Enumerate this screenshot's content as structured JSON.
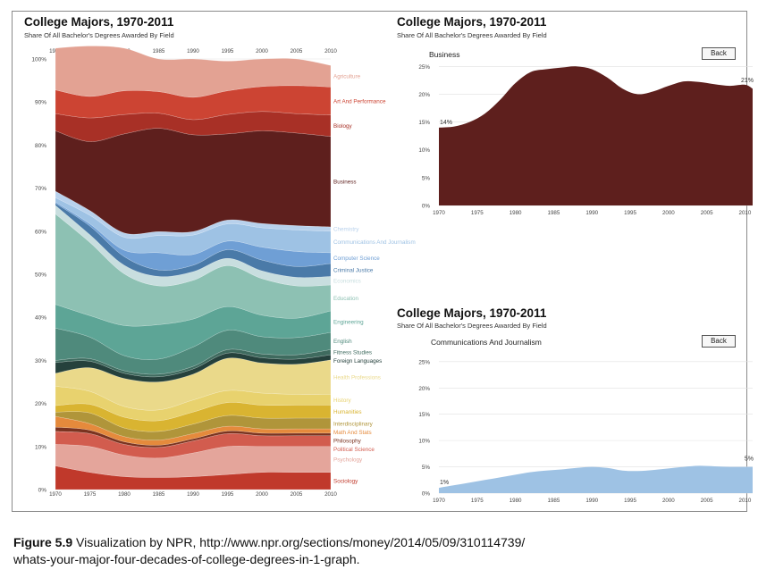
{
  "caption": {
    "figure_label": "Figure 5.9",
    "text_line1": "Visualization by NPR, http://www.npr.org/sections/money/2014/05/09/310114739/",
    "text_line2": "whats-your-major-four-decades-of-college-degrees-in-1-graph."
  },
  "main_panel": {
    "title": "College Majors, 1970-2011",
    "subtitle": "Share Of All Bachelor's Degrees Awarded By Field"
  },
  "business_panel": {
    "title": "College Majors, 1970-2011",
    "subtitle": "Share Of All Bachelor's Degrees Awarded By Field",
    "series_label": "Business",
    "back_label": "Back",
    "start_label": "14%",
    "end_label": "21%"
  },
  "comm_panel": {
    "title": "College Majors, 1970-2011",
    "subtitle": "Share Of All Bachelor's Degrees Awarded By Field",
    "series_label": "Communications And Journalism",
    "back_label": "Back",
    "start_label": "1%",
    "end_label": "5%"
  },
  "chart_data": [
    {
      "type": "area",
      "stacked": true,
      "title": "College Majors, 1970-2011",
      "subtitle": "Share Of All Bachelor's Degrees Awarded By Field",
      "x": [
        1970,
        1975,
        1980,
        1985,
        1990,
        1995,
        2000,
        2005,
        2010
      ],
      "x_ticks": [
        "1970",
        "1975",
        "1980",
        "1985",
        "1990",
        "1995",
        "2000",
        "2005",
        "2010"
      ],
      "y_ticks": [
        "0%",
        "10%",
        "20%",
        "30%",
        "40%",
        "50%",
        "60%",
        "70%",
        "80%",
        "90%",
        "100%"
      ],
      "ylim": [
        0,
        100
      ],
      "stack_order": "bottom-to-top",
      "series": [
        {
          "name": "Sociology",
          "color": "#c0392b",
          "values": [
            5.5,
            4.0,
            3.0,
            2.8,
            3.0,
            3.5,
            4.0,
            4.0,
            4.0
          ]
        },
        {
          "name": "Psychology",
          "color": "#e4a59b",
          "values": [
            5.0,
            6.0,
            5.0,
            4.5,
            5.5,
            6.5,
            6.0,
            6.0,
            6.0
          ]
        },
        {
          "name": "Political Science",
          "color": "#d25c4e",
          "values": [
            3.0,
            3.0,
            2.5,
            2.5,
            2.8,
            3.0,
            2.5,
            2.5,
            2.5
          ]
        },
        {
          "name": "Philosophy",
          "color": "#7a3320",
          "values": [
            1.0,
            0.8,
            0.6,
            0.5,
            0.5,
            0.6,
            0.6,
            0.6,
            0.6
          ]
        },
        {
          "name": "Math And Stats",
          "color": "#e58a3c",
          "values": [
            2.5,
            1.5,
            1.2,
            1.2,
            1.2,
            1.1,
            1.0,
            1.0,
            1.0
          ]
        },
        {
          "name": "Interdisciplinary",
          "color": "#b0953a",
          "values": [
            1.0,
            2.5,
            2.0,
            2.0,
            2.2,
            2.5,
            2.5,
            2.5,
            2.5
          ]
        },
        {
          "name": "Humanities",
          "color": "#d9b431",
          "values": [
            1.5,
            2.0,
            2.5,
            2.5,
            2.8,
            3.0,
            3.0,
            3.0,
            3.0
          ]
        },
        {
          "name": "History",
          "color": "#e8d26e",
          "values": [
            4.5,
            3.0,
            2.5,
            2.5,
            2.8,
            2.8,
            2.8,
            2.5,
            2.5
          ]
        },
        {
          "name": "Health Professions",
          "color": "#ead98a",
          "values": [
            3.0,
            5.5,
            6.5,
            6.5,
            6.0,
            7.5,
            7.0,
            7.0,
            8.0
          ]
        },
        {
          "name": "Foreign Languages",
          "color": "#25413c",
          "values": [
            2.5,
            1.5,
            1.2,
            1.2,
            1.2,
            1.2,
            1.2,
            1.2,
            1.2
          ]
        },
        {
          "name": "Fitness Studies",
          "color": "#3f6b5f",
          "values": [
            0.5,
            0.6,
            0.6,
            0.6,
            0.6,
            0.8,
            0.9,
            1.0,
            1.2
          ]
        },
        {
          "name": "English",
          "color": "#4f8a7c",
          "values": [
            7.5,
            5.0,
            3.5,
            3.5,
            4.5,
            4.5,
            4.0,
            4.0,
            4.0
          ]
        },
        {
          "name": "Engineering",
          "color": "#5da596",
          "values": [
            5.5,
            5.0,
            7.0,
            8.0,
            6.5,
            5.5,
            5.0,
            4.5,
            5.0
          ]
        },
        {
          "name": "Education",
          "color": "#8dc1b3",
          "values": [
            21.0,
            17.0,
            12.0,
            9.0,
            9.0,
            9.5,
            8.5,
            7.5,
            6.0
          ]
        },
        {
          "name": "Economics",
          "color": "#c8dedf",
          "values": [
            2.0,
            1.8,
            2.0,
            2.2,
            2.0,
            1.7,
            1.8,
            2.0,
            2.0
          ]
        },
        {
          "name": "Criminal Justice",
          "color": "#4a7aa8",
          "values": [
            0.5,
            2.0,
            2.0,
            1.5,
            1.5,
            2.0,
            2.5,
            2.5,
            3.0
          ]
        },
        {
          "name": "Computer Science",
          "color": "#6f9fd5",
          "values": [
            0.3,
            0.5,
            1.5,
            4.0,
            2.5,
            2.0,
            3.0,
            3.5,
            2.5
          ]
        },
        {
          "name": "Communications And Journalism",
          "color": "#9ec2e4",
          "values": [
            1.0,
            2.0,
            3.0,
            4.0,
            4.5,
            4.0,
            4.5,
            5.0,
            5.0
          ]
        },
        {
          "name": "Chemistry",
          "color": "#b8d1ec",
          "values": [
            1.5,
            1.1,
            1.0,
            0.9,
            0.8,
            0.9,
            1.0,
            1.0,
            1.0
          ]
        },
        {
          "name": "Business",
          "color": "#5e1f1d",
          "values": [
            14.0,
            16.0,
            23.0,
            24.0,
            22.5,
            20.0,
            21.5,
            21.5,
            21.0
          ]
        },
        {
          "name": "Biology",
          "color": "#a83026",
          "values": [
            4.0,
            5.5,
            4.5,
            3.5,
            3.5,
            4.5,
            4.5,
            4.5,
            5.0
          ]
        },
        {
          "name": "Art And Performance",
          "color": "#cc4433",
          "values": [
            5.5,
            5.0,
            5.5,
            5.0,
            5.2,
            5.5,
            5.8,
            6.5,
            6.5
          ]
        },
        {
          "name": "Agriculture",
          "color": "#e3a293",
          "values": [
            9.7,
            11.7,
            9.9,
            7.6,
            8.9,
            6.9,
            6.4,
            6.2,
            5.0
          ]
        }
      ]
    },
    {
      "type": "area",
      "title": "College Majors, 1970-2011",
      "subtitle": "Share Of All Bachelor's Degrees Awarded By Field",
      "x": [
        1970,
        1972,
        1974,
        1976,
        1978,
        1980,
        1982,
        1984,
        1986,
        1988,
        1990,
        1992,
        1994,
        1996,
        1998,
        2000,
        2002,
        2004,
        2006,
        2008,
        2010,
        2011
      ],
      "x_ticks": [
        "1970",
        "1975",
        "1980",
        "1985",
        "1990",
        "1995",
        "2000",
        "2005",
        "2010"
      ],
      "y_ticks": [
        "0%",
        "5%",
        "10%",
        "15%",
        "20%",
        "25%"
      ],
      "ylim": [
        0,
        26.5
      ],
      "series": [
        {
          "name": "Business",
          "color": "#5e1f1d",
          "values": [
            14.0,
            14.2,
            15.0,
            16.5,
            19.0,
            22.0,
            24.0,
            24.5,
            24.8,
            25.0,
            24.5,
            23.0,
            21.0,
            20.0,
            20.5,
            21.5,
            22.3,
            22.2,
            21.8,
            21.5,
            21.7,
            21.0
          ]
        }
      ],
      "annotations": [
        "14%",
        "21%"
      ]
    },
    {
      "type": "area",
      "title": "College Majors, 1970-2011",
      "subtitle": "Share Of All Bachelor's Degrees Awarded By Field",
      "x": [
        1970,
        1972,
        1974,
        1976,
        1978,
        1980,
        1982,
        1984,
        1986,
        1988,
        1990,
        1992,
        1994,
        1996,
        1998,
        2000,
        2002,
        2004,
        2006,
        2008,
        2010,
        2011
      ],
      "x_ticks": [
        "1970",
        "1975",
        "1980",
        "1985",
        "1990",
        "1995",
        "2000",
        "2005",
        "2010"
      ],
      "y_ticks": [
        "0%",
        "5%",
        "10%",
        "15%",
        "20%",
        "25%"
      ],
      "ylim": [
        0,
        26.5
      ],
      "series": [
        {
          "name": "Communications And Journalism",
          "color": "#9ec2e4",
          "values": [
            1.0,
            1.5,
            2.0,
            2.5,
            3.0,
            3.5,
            4.0,
            4.3,
            4.5,
            4.8,
            5.0,
            4.8,
            4.3,
            4.2,
            4.4,
            4.7,
            5.0,
            5.2,
            5.1,
            5.0,
            5.0,
            5.0
          ]
        }
      ],
      "annotations": [
        "1%",
        "5%"
      ]
    }
  ]
}
